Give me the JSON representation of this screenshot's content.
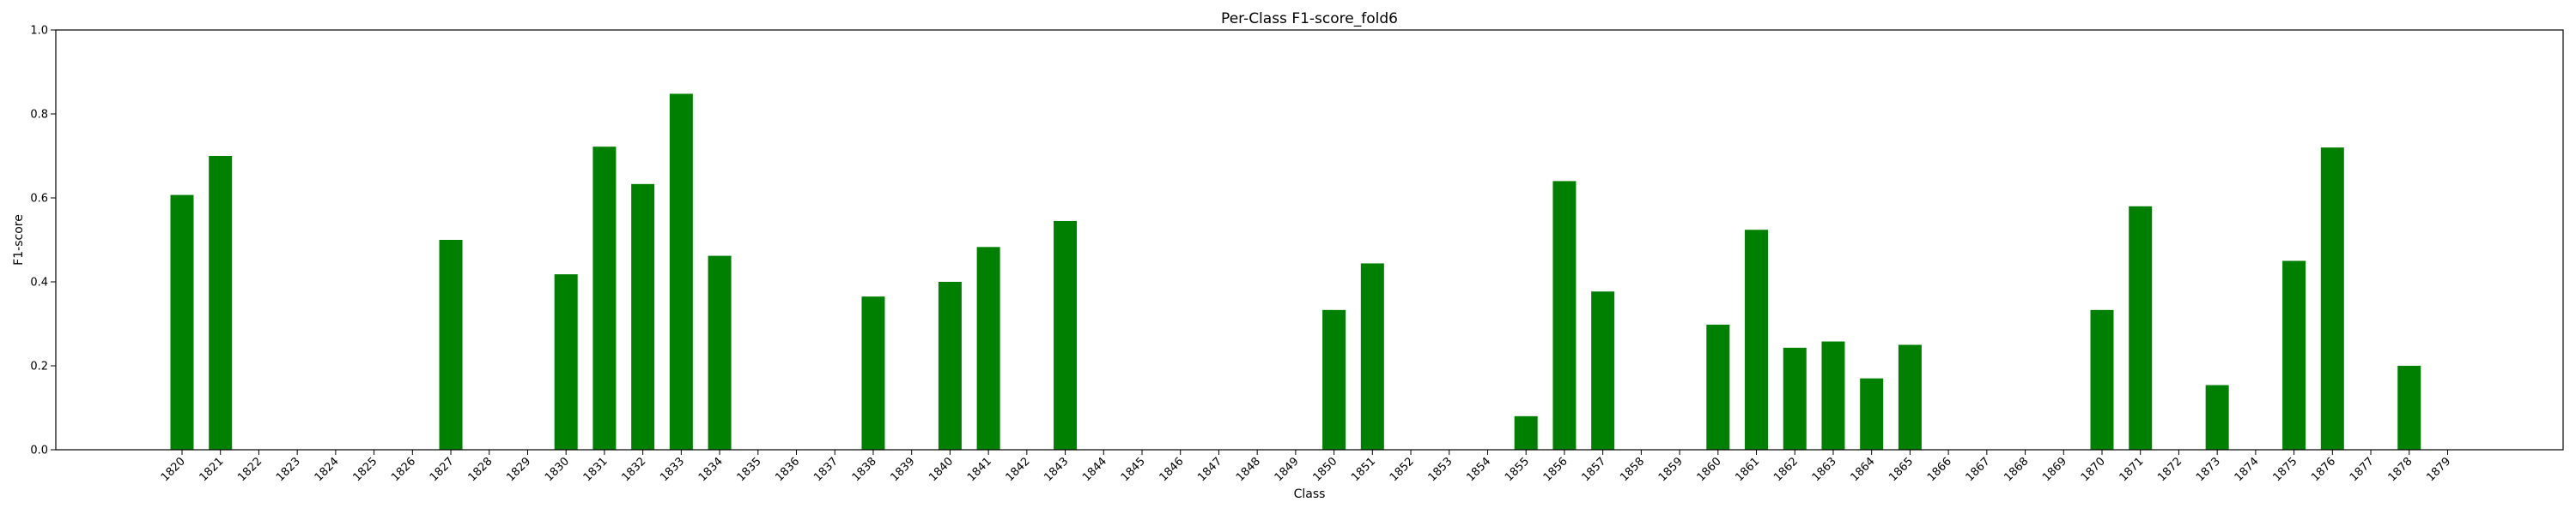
{
  "chart_data": {
    "type": "bar",
    "title": "Per-Class F1-score_fold6",
    "xlabel": "Class",
    "ylabel": "F1-score",
    "ylim": [
      0,
      1.0
    ],
    "yticks": [
      "0.0",
      "0.2",
      "0.4",
      "0.6",
      "0.8",
      "1.0"
    ],
    "bar_color": "#008000",
    "grid": false,
    "categories": [
      "1820",
      "1821",
      "1822",
      "1823",
      "1824",
      "1825",
      "1826",
      "1827",
      "1828",
      "1829",
      "1830",
      "1831",
      "1832",
      "1833",
      "1834",
      "1835",
      "1836",
      "1837",
      "1838",
      "1839",
      "1840",
      "1841",
      "1842",
      "1843",
      "1844",
      "1845",
      "1846",
      "1847",
      "1848",
      "1849",
      "1850",
      "1851",
      "1852",
      "1853",
      "1854",
      "1855",
      "1856",
      "1857",
      "1858",
      "1859",
      "1860",
      "1861",
      "1862",
      "1863",
      "1864",
      "1865",
      "1866",
      "1867",
      "1868",
      "1869",
      "1870",
      "1871",
      "1872",
      "1873",
      "1874",
      "1875",
      "1876",
      "1877",
      "1878",
      "1879"
    ],
    "values": [
      0.607,
      0.7,
      0,
      0,
      0,
      0,
      0,
      0.5,
      0,
      0,
      0.418,
      0.722,
      0.633,
      0.848,
      0.462,
      0,
      0,
      0,
      0.365,
      0,
      0.4,
      0.483,
      0,
      0.545,
      0,
      0,
      0,
      0,
      0,
      0,
      0.333,
      0.444,
      0,
      0,
      0,
      0.08,
      0.64,
      0.377,
      0,
      0,
      0.298,
      0.524,
      0.243,
      0.258,
      0.17,
      0.25,
      0,
      0,
      0,
      0,
      0.333,
      0.58,
      0,
      0.154,
      0,
      0.45,
      0.72,
      0,
      0.2,
      0
    ]
  }
}
